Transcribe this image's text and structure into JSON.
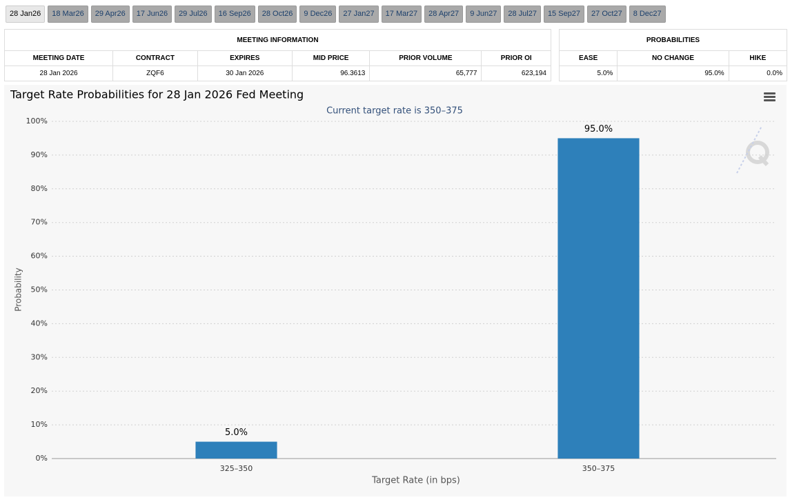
{
  "tabs": [
    "28 Jan26",
    "18 Mar26",
    "29 Apr26",
    "17 Jun26",
    "29 Jul26",
    "16 Sep26",
    "28 Oct26",
    "9 Dec26",
    "27 Jan27",
    "17 Mar27",
    "28 Apr27",
    "9 Jun27",
    "28 Jul27",
    "15 Sep27",
    "27 Oct27",
    "8 Dec27"
  ],
  "meeting_table": {
    "title": "MEETING INFORMATION",
    "headers": [
      "MEETING DATE",
      "CONTRACT",
      "EXPIRES",
      "MID PRICE",
      "PRIOR VOLUME",
      "PRIOR OI"
    ],
    "rows": [
      [
        "28 Jan 2026",
        "ZQF6",
        "30 Jan 2026",
        "96.3613",
        "65,777",
        "623,194"
      ]
    ]
  },
  "probability_table": {
    "title": "PROBABILITIES",
    "headers": [
      "EASE",
      "NO CHANGE",
      "HIKE"
    ],
    "rows": [
      [
        "5.0%",
        "95.0%",
        "0.0%"
      ]
    ]
  },
  "chart_data": {
    "type": "bar",
    "title": "Target Rate Probabilities for 28 Jan 2026 Fed Meeting",
    "subtitle": "Current target rate is 350–375",
    "xlabel": "Target Rate (in bps)",
    "ylabel": "Probability",
    "categories": [
      "325–350",
      "350–375"
    ],
    "values": [
      5.0,
      95.0
    ],
    "value_labels": [
      "5.0%",
      "95.0%"
    ],
    "color": "#2e80ba",
    "grid": true,
    "ylim": [
      0,
      100
    ],
    "yticks": [
      {
        "value": 0,
        "label": "0%"
      },
      {
        "value": 10,
        "label": "10%"
      },
      {
        "value": 20,
        "label": "20%"
      },
      {
        "value": 30,
        "label": "30%"
      },
      {
        "value": 40,
        "label": "40%"
      },
      {
        "value": 50,
        "label": "50%"
      },
      {
        "value": 60,
        "label": "60%"
      },
      {
        "value": 70,
        "label": "70%"
      },
      {
        "value": 80,
        "label": "80%"
      },
      {
        "value": 90,
        "label": "90%"
      },
      {
        "value": 100,
        "label": "100%"
      }
    ]
  }
}
